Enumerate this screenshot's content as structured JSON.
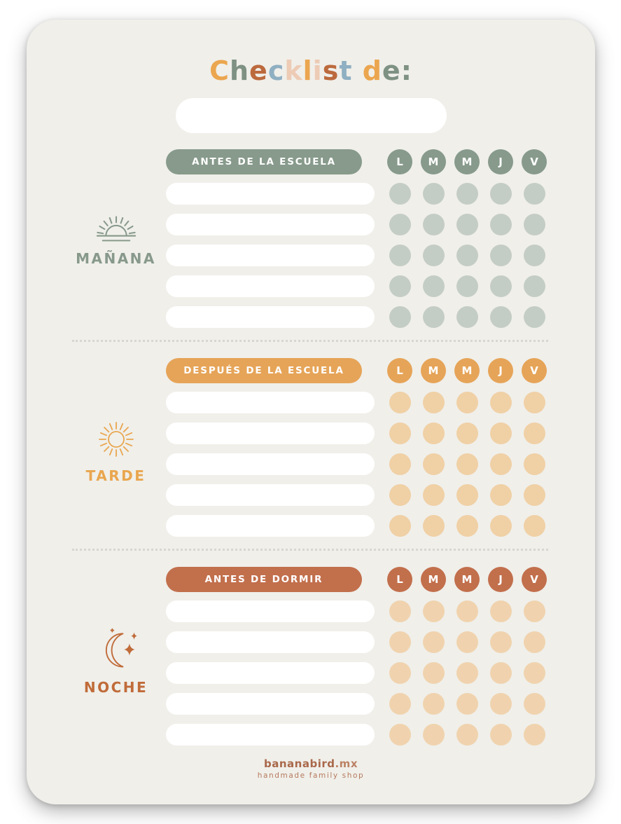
{
  "title": {
    "text": "Checklist de:",
    "letters": [
      {
        "ch": "C",
        "color": "#EBA64F"
      },
      {
        "ch": "h",
        "color": "#7E9183"
      },
      {
        "ch": "e",
        "color": "#BC6A3D"
      },
      {
        "ch": "c",
        "color": "#8FAFC2"
      },
      {
        "ch": "k",
        "color": "#EDCBB5"
      },
      {
        "ch": "l",
        "color": "#EBA64F"
      },
      {
        "ch": "i",
        "color": "#EDCBB5"
      },
      {
        "ch": "s",
        "color": "#BC6A3D"
      },
      {
        "ch": "t",
        "color": "#8FAFC2"
      },
      {
        "ch": " ",
        "color": "#9A9A9A"
      },
      {
        "ch": "d",
        "color": "#EBA64F"
      },
      {
        "ch": "e",
        "color": "#7E9183"
      },
      {
        "ch": ":",
        "color": "#7E9183"
      }
    ]
  },
  "name_field": {
    "value": "",
    "placeholder": ""
  },
  "days": [
    "L",
    "M",
    "M",
    "J",
    "V"
  ],
  "sections": [
    {
      "id": "morning",
      "label": "MAÑANA",
      "header": "ANTES DE LA ESCUELA",
      "color": "#879A8B",
      "dot_color": "#C4CDC5",
      "accent": "#87998B",
      "icon": "sunrise-icon",
      "rows": 5
    },
    {
      "id": "afternoon",
      "label": "TARDE",
      "header": "DESPUÉS DE LA ESCUELA",
      "color": "#E6A458",
      "dot_color": "#F0D0A5",
      "accent": "#E9A64F",
      "icon": "sun-icon",
      "rows": 5
    },
    {
      "id": "night",
      "label": "NOCHE",
      "header": "ANTES DE DORMIR",
      "color": "#C26F4C",
      "dot_color": "#F0D3AE",
      "accent": "#C06B39",
      "icon": "moon-icon",
      "rows": 5
    }
  ],
  "footer": {
    "brand": "bananabird",
    "tld": ".mx",
    "tagline": "handmade family shop"
  },
  "colors": {
    "page_bg": "#FFFFFF",
    "card_bg": "#F0EFEA",
    "divider": "#D7D6D1"
  }
}
